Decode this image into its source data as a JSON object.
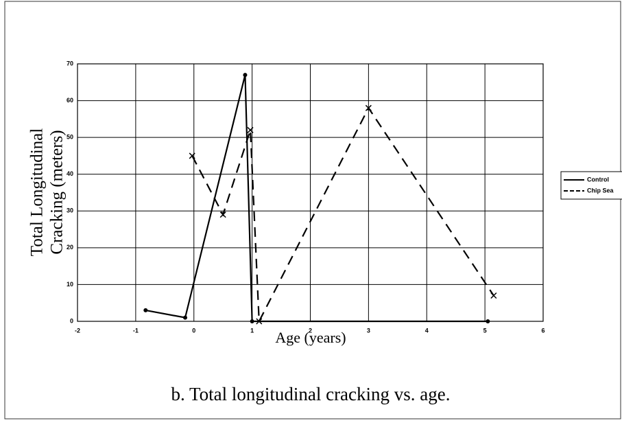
{
  "chart_data": {
    "type": "line",
    "xlabel": "Age (years)",
    "ylabel": [
      "Total Longitudinal",
      "Cracking (meters)"
    ],
    "caption": "b. Total longitudinal cracking vs. age.",
    "series": [
      {
        "name": "Control",
        "color": "#000000",
        "dash": false,
        "marker": "dot",
        "x": [
          -0.83,
          -0.15,
          0.88,
          1.0,
          5.05
        ],
        "values": [
          3,
          1,
          67,
          0,
          0
        ]
      },
      {
        "name": "Chip Sea",
        "color": "#000000",
        "dash": true,
        "marker": "x",
        "x": [
          -0.03,
          0.5,
          0.97,
          1.12,
          3.0,
          5.15
        ],
        "values": [
          45,
          29,
          52,
          0,
          58,
          7
        ]
      }
    ],
    "xlim": [
      -2,
      6
    ],
    "xticks": [
      -2,
      -1,
      0,
      1,
      2,
      3,
      4,
      5,
      6
    ],
    "ylim": [
      0,
      70
    ],
    "yticks": [
      0,
      10,
      20,
      30,
      40,
      50,
      60,
      70
    ],
    "grid": true,
    "legend": "right"
  }
}
